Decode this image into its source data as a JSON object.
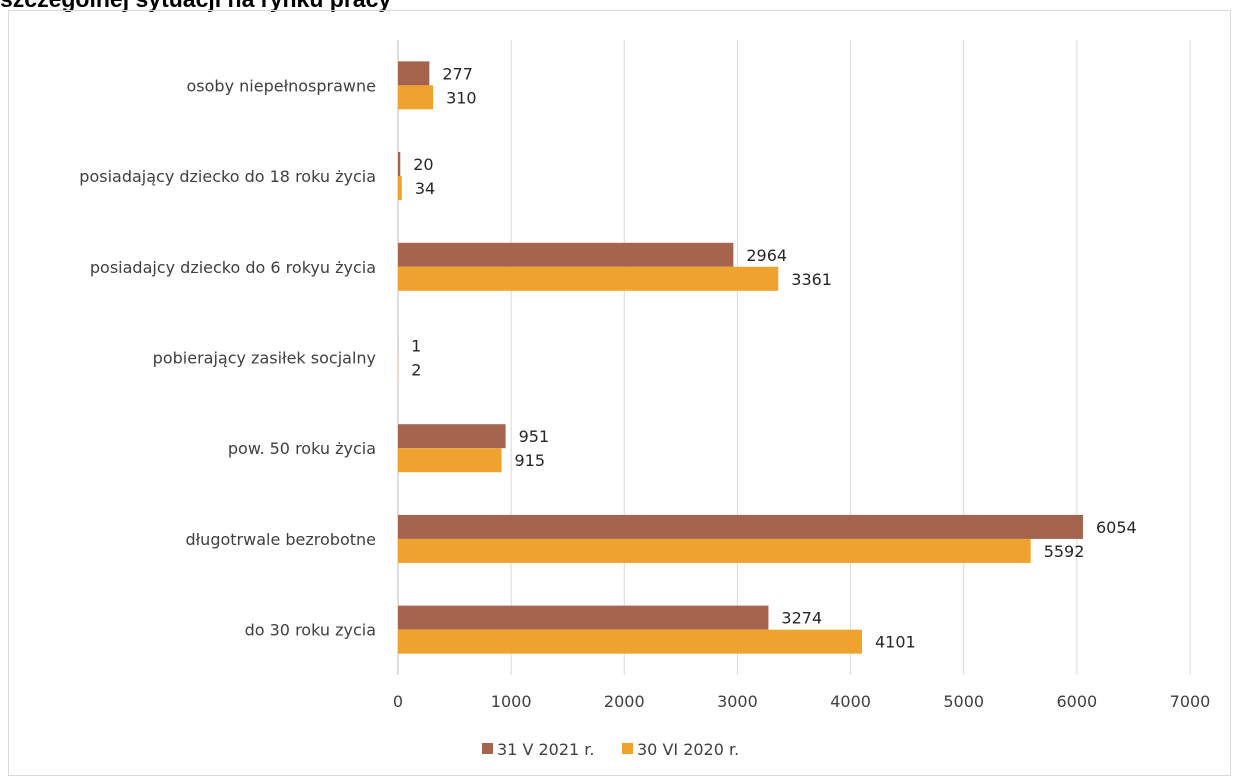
{
  "title": "szczególnej sytuacji na rynku pracy",
  "chart_data": {
    "type": "bar",
    "orientation": "horizontal",
    "categories": [
      "osoby niepełnosprawne",
      "posiadający dziecko do 18 roku życia",
      "posiadajcy dziecko do 6 rokyu życia",
      "pobierający zasiłek socjalny",
      "pow. 50 roku życia",
      "długotrwale bezrobotne",
      "do 30 roku zycia"
    ],
    "series": [
      {
        "name": "31 V 2021 r.",
        "color": "#a5644e",
        "values": [
          277,
          20,
          2964,
          1,
          951,
          6054,
          3274
        ]
      },
      {
        "name": "30 VI 2020 r.",
        "color": "#f0a22e",
        "values": [
          310,
          34,
          3361,
          2,
          915,
          5592,
          4101
        ]
      }
    ],
    "xlim": [
      0,
      7000
    ],
    "xticks": [
      "0",
      "1000",
      "2000",
      "3000",
      "4000",
      "5000",
      "6000",
      "7000"
    ],
    "grid": true,
    "legend_position": "bottom",
    "title": "",
    "xlabel": "",
    "ylabel": ""
  }
}
